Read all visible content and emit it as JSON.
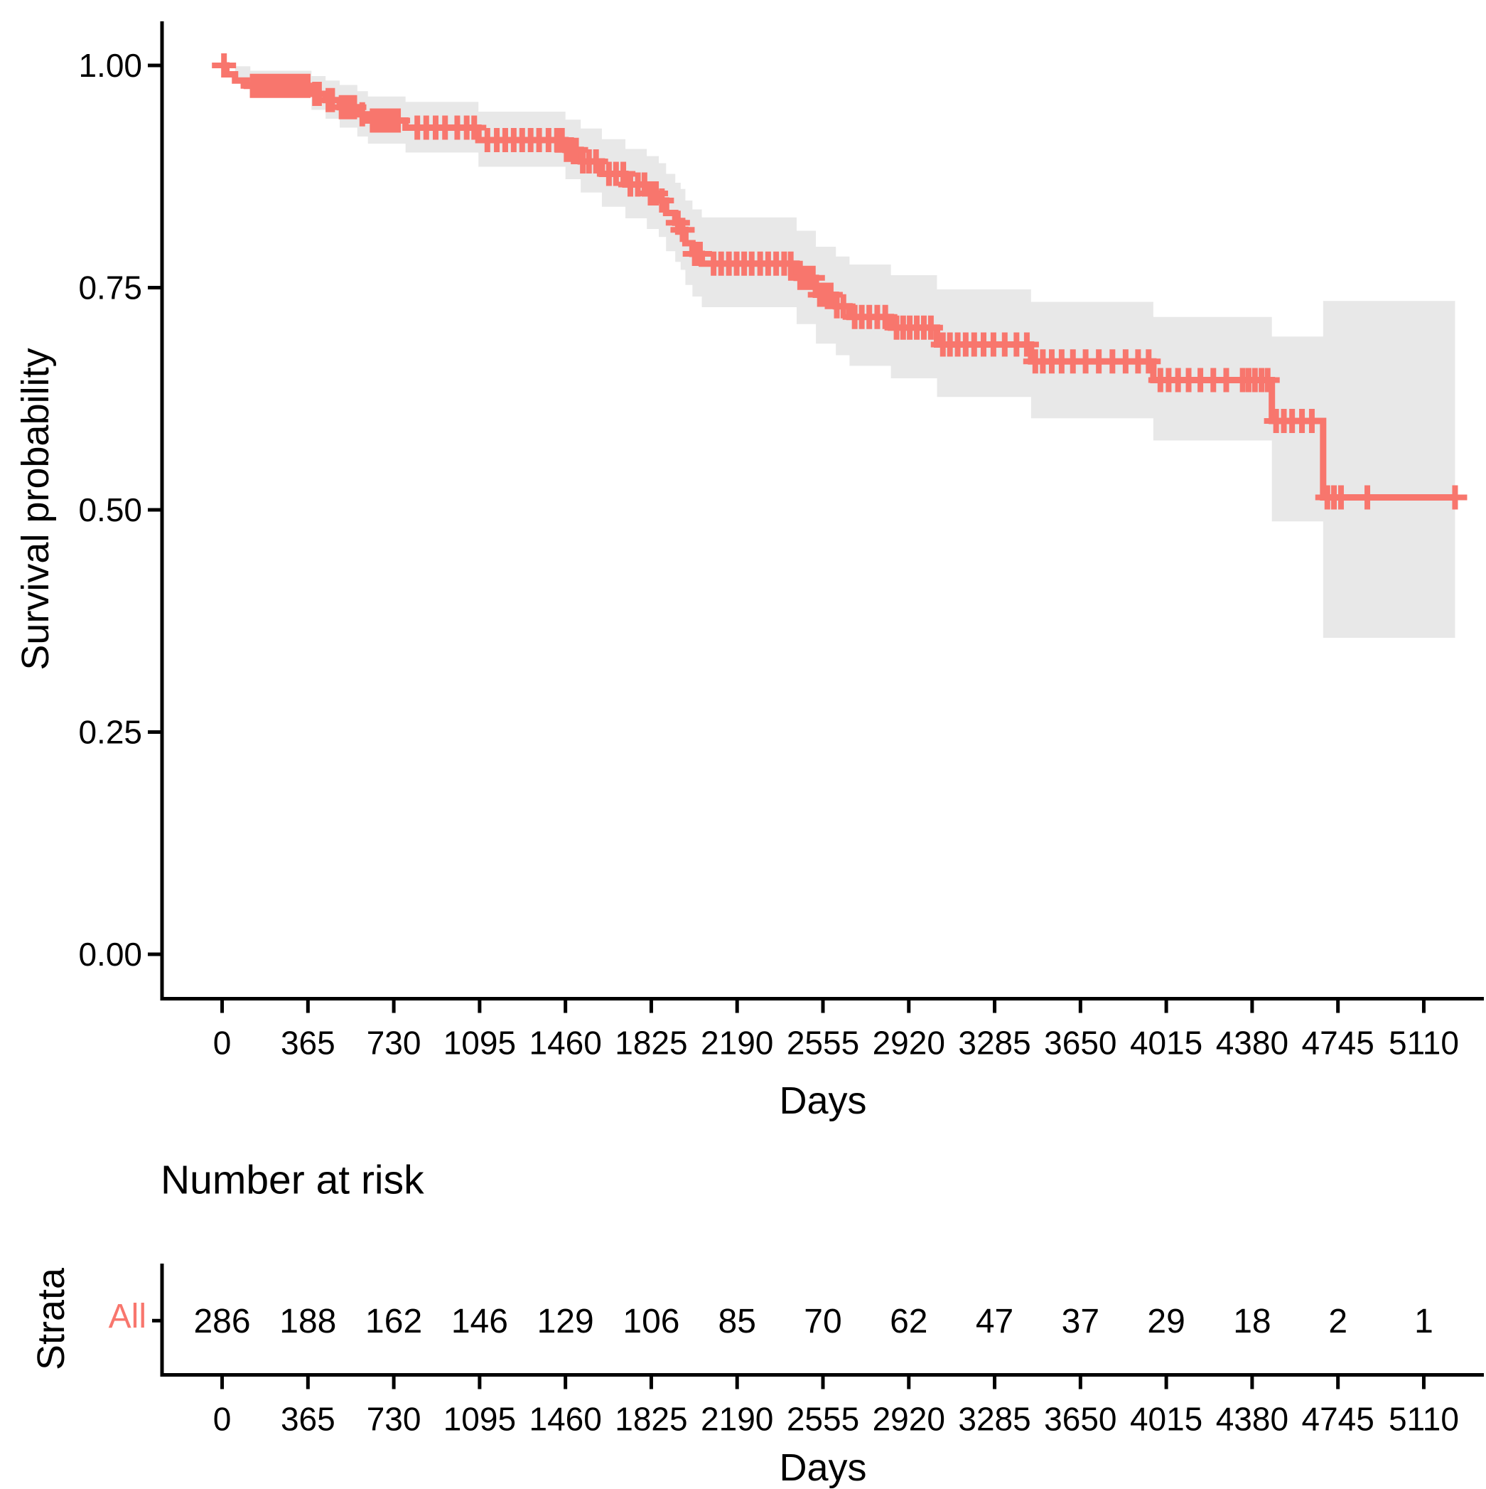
{
  "chart_data": {
    "type": "line",
    "variant": "kaplan-meier-step",
    "title": "",
    "xlabel": "Days",
    "ylabel": "Survival probability",
    "grid": false,
    "legend_position": "none",
    "x_domain": [
      -255.5,
      5365.5
    ],
    "y_domain": [
      -0.05,
      1.05
    ],
    "x_ticks": [
      0,
      365,
      730,
      1095,
      1460,
      1825,
      2190,
      2555,
      2920,
      3285,
      3650,
      4015,
      4380,
      4745,
      5110
    ],
    "x_tick_labels": [
      "0",
      "365",
      "730",
      "1095",
      "1460",
      "1825",
      "2190",
      "2555",
      "2920",
      "3285",
      "3650",
      "4015",
      "4380",
      "4745",
      "5110"
    ],
    "y_ticks": [
      0,
      0.25,
      0.5,
      0.75,
      1
    ],
    "y_tick_labels": [
      "0.00",
      "0.25",
      "0.50",
      "0.75",
      "1.00"
    ],
    "colors": {
      "curve": "#F8766D",
      "confidence_band": "#E8E8E8",
      "axis": "#000000",
      "text": "#000000"
    },
    "series": [
      {
        "name": "All",
        "color": "#F8766D",
        "steps": [
          [
            0,
            1.0
          ],
          [
            18,
            0.99
          ],
          [
            55,
            0.983
          ],
          [
            105,
            0.977
          ],
          [
            380,
            0.968
          ],
          [
            440,
            0.961
          ],
          [
            500,
            0.953
          ],
          [
            575,
            0.945
          ],
          [
            620,
            0.938
          ],
          [
            780,
            0.93
          ],
          [
            1090,
            0.916
          ],
          [
            1460,
            0.905
          ],
          [
            1525,
            0.892
          ],
          [
            1615,
            0.878
          ],
          [
            1715,
            0.866
          ],
          [
            1806,
            0.856
          ],
          [
            1857,
            0.848
          ],
          [
            1888,
            0.834
          ],
          [
            1927,
            0.823
          ],
          [
            1950,
            0.815
          ],
          [
            1970,
            0.8
          ],
          [
            2000,
            0.788
          ],
          [
            2040,
            0.777
          ],
          [
            2443,
            0.761
          ],
          [
            2525,
            0.742
          ],
          [
            2610,
            0.729
          ],
          [
            2668,
            0.717
          ],
          [
            2844,
            0.705
          ],
          [
            3040,
            0.686
          ],
          [
            3440,
            0.667
          ],
          [
            3960,
            0.646
          ],
          [
            4464,
            0.6
          ],
          [
            4682,
            0.514
          ],
          [
            5243,
            0.514
          ]
        ],
        "ci": [
          [
            0,
            1,
            1
          ],
          [
            55,
            0.984,
            0.999
          ],
          [
            120,
            0.97,
            0.994
          ],
          [
            380,
            0.95,
            0.988
          ],
          [
            440,
            0.94,
            0.983
          ],
          [
            500,
            0.93,
            0.978
          ],
          [
            575,
            0.92,
            0.971
          ],
          [
            620,
            0.912,
            0.965
          ],
          [
            780,
            0.902,
            0.959
          ],
          [
            1090,
            0.886,
            0.948
          ],
          [
            1460,
            0.872,
            0.939
          ],
          [
            1525,
            0.857,
            0.929
          ],
          [
            1615,
            0.841,
            0.917
          ],
          [
            1715,
            0.828,
            0.906
          ],
          [
            1806,
            0.816,
            0.898
          ],
          [
            1857,
            0.807,
            0.89
          ],
          [
            1888,
            0.791,
            0.878
          ],
          [
            1927,
            0.779,
            0.868
          ],
          [
            1950,
            0.77,
            0.861
          ],
          [
            1970,
            0.753,
            0.848
          ],
          [
            2000,
            0.74,
            0.838
          ],
          [
            2040,
            0.728,
            0.829
          ],
          [
            2443,
            0.709,
            0.814
          ],
          [
            2525,
            0.687,
            0.796
          ],
          [
            2610,
            0.674,
            0.785
          ],
          [
            2668,
            0.662,
            0.776
          ],
          [
            2844,
            0.648,
            0.764
          ],
          [
            3040,
            0.627,
            0.748
          ],
          [
            3440,
            0.603,
            0.734
          ],
          [
            3960,
            0.578,
            0.717
          ],
          [
            4464,
            0.487,
            0.695
          ],
          [
            4682,
            0.356,
            0.735
          ],
          [
            5243,
            0.356,
            0.735
          ]
        ],
        "censor_times": [
          8,
          130,
          148,
          166,
          184,
          202,
          220,
          238,
          256,
          274,
          292,
          310,
          328,
          346,
          364,
          395,
          412,
          452,
          468,
          508,
          524,
          546,
          562,
          596,
          640,
          662,
          684,
          706,
          728,
          748,
          830,
          868,
          908,
          948,
          1000,
          1040,
          1072,
          1128,
          1168,
          1204,
          1240,
          1276,
          1312,
          1348,
          1388,
          1424,
          1445,
          1465,
          1485,
          1505,
          1534,
          1560,
          1590,
          1645,
          1675,
          1706,
          1736,
          1768,
          1796,
          1822,
          1845,
          1870,
          1938,
          1958,
          2010,
          2032,
          2090,
          2122,
          2155,
          2188,
          2220,
          2252,
          2288,
          2322,
          2356,
          2390,
          2418,
          2458,
          2476,
          2496,
          2512,
          2542,
          2564,
          2588,
          2614,
          2642,
          2690,
          2720,
          2752,
          2786,
          2820,
          2868,
          2896,
          2924,
          2954,
          2984,
          3014,
          3065,
          3095,
          3128,
          3162,
          3198,
          3238,
          3280,
          3328,
          3378,
          3422,
          3458,
          3490,
          3528,
          3570,
          3618,
          3672,
          3728,
          3786,
          3842,
          3895,
          3940,
          3990,
          4025,
          4065,
          4110,
          4160,
          4215,
          4270,
          4340,
          4365,
          4392,
          4420,
          4446,
          4482,
          4515,
          4550,
          4592,
          4634,
          4700,
          4728,
          4758,
          4870,
          5243
        ]
      }
    ],
    "risk_table": {
      "title": "Number at risk",
      "axis_label": "Strata",
      "xlabel": "Days",
      "rows": [
        {
          "label": "All",
          "color": "#F8766D",
          "times": [
            0,
            365,
            730,
            1095,
            1460,
            1825,
            2190,
            2555,
            2920,
            3285,
            3650,
            4015,
            4380,
            4745,
            5110
          ],
          "values": [
            286,
            188,
            162,
            146,
            129,
            106,
            85,
            70,
            62,
            47,
            37,
            29,
            18,
            2,
            1
          ]
        }
      ]
    }
  }
}
